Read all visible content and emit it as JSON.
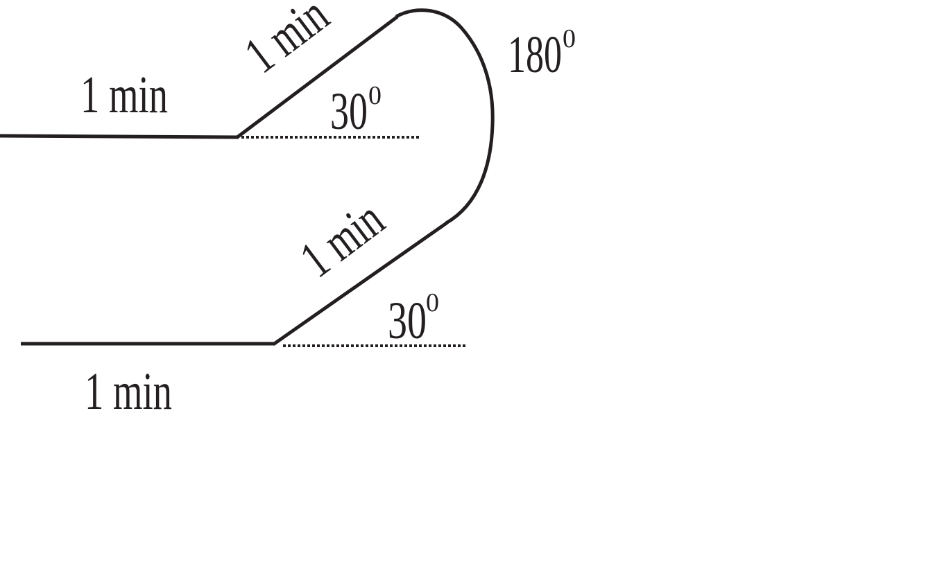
{
  "labels": {
    "top_horizontal": "1 min",
    "top_incline": "1 min",
    "top_angle_value": "30",
    "top_angle_unit": "0",
    "turn_angle_value": "180",
    "turn_angle_unit": "0",
    "bottom_incline": "1 min",
    "bottom_angle_value": "30",
    "bottom_angle_unit": "0",
    "bottom_horizontal": "1 min"
  },
  "colors": {
    "ink": "#231f20",
    "background": "#ffffff"
  }
}
